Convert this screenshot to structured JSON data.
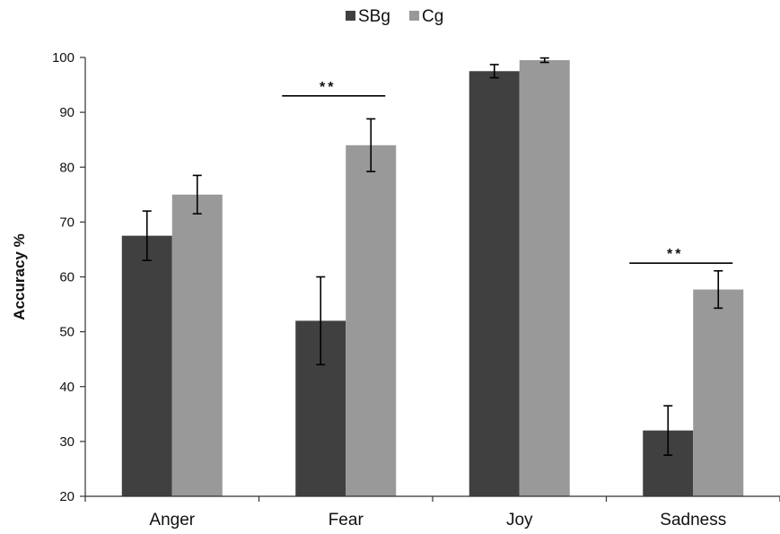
{
  "chart_data": {
    "type": "bar",
    "title": "",
    "xlabel": "",
    "ylabel": "Accuracy %",
    "ylim": [
      20,
      100
    ],
    "yticks": [
      20,
      30,
      40,
      50,
      60,
      70,
      80,
      90,
      100
    ],
    "grid": false,
    "legend_position": "top-center",
    "categories": [
      "Anger",
      "Fear",
      "Joy",
      "Sadness"
    ],
    "series": [
      {
        "name": "SBg",
        "color": "#404040",
        "values": [
          67.5,
          52,
          97.5,
          32
        ],
        "errors": [
          4.5,
          8,
          1.2,
          4.5
        ]
      },
      {
        "name": "Cg",
        "color": "#999999",
        "values": [
          75,
          84,
          99.5,
          57.7
        ],
        "errors": [
          3.5,
          4.8,
          0.4,
          3.4
        ]
      }
    ],
    "significance": [
      {
        "category": "Fear",
        "label": "**",
        "y": 93
      },
      {
        "category": "Sadness",
        "label": "**",
        "y": 62.5
      }
    ]
  }
}
